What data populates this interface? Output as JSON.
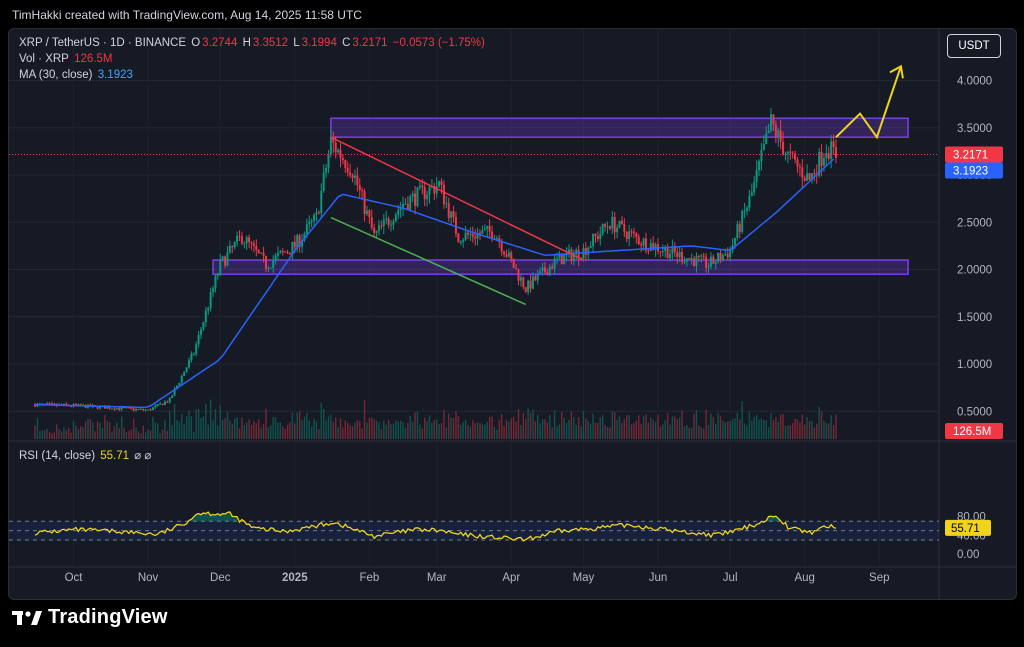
{
  "credit": "TimHakki created with TradingView.com, Aug 14, 2025 11:58 UTC",
  "header": {
    "symbol": "XRP / TetherUS · 1D · BINANCE",
    "o_label": "O",
    "o_value": "3.2744",
    "h_label": "H",
    "h_value": "3.3512",
    "l_label": "L",
    "l_value": "3.1994",
    "c_label": "C",
    "c_value": "3.2171",
    "change": "−0.0573 (−1.75%)",
    "vol_label": "Vol · XRP",
    "vol_value": "126.5M",
    "ma_label": "MA (30, close)",
    "ma_value": "3.1923",
    "rsi_label": "RSI (14, close)",
    "rsi_value": "55.71",
    "rsi_icons": "⌀ ⌀"
  },
  "currency_button": "USDT",
  "brand": "TradingView",
  "colors": {
    "up": "#089981",
    "down": "#f23645",
    "ma": "#2962ff",
    "rsi": "#f0d31b",
    "zone": "#7b3fe4",
    "resistance_line": "#f23645",
    "support_line": "#4caf50",
    "arrow": "#f0d31b"
  },
  "chart_data": [
    {
      "type": "candlestick",
      "title": "XRP / TetherUS · 1D · BINANCE",
      "y_axis": {
        "ticks": [
          "4.0000",
          "3.5000",
          "3.0000",
          "2.5000",
          "2.0000",
          "1.5000",
          "1.0000",
          "0.5000"
        ],
        "ylim": [
          0,
          4.5
        ]
      },
      "x_axis": {
        "ticks": [
          "Oct",
          "Nov",
          "Dec",
          "2025",
          "Feb",
          "Mar",
          "Apr",
          "May",
          "Jun",
          "Jul",
          "Aug",
          "Sep"
        ]
      },
      "price_labels": [
        {
          "text": "3.2171",
          "value": 3.2171,
          "color": "#f23645"
        },
        {
          "text": "3.1923",
          "value": 3.1923,
          "color": "#2962ff"
        },
        {
          "text": "126.5M",
          "color": "#f23645"
        }
      ],
      "approx_close": {
        "dates": [
          "2024-09-15",
          "2024-10-01",
          "2024-10-15",
          "2024-11-01",
          "2024-11-10",
          "2024-11-20",
          "2024-12-01",
          "2024-12-10",
          "2024-12-20",
          "2025-01-01",
          "2025-01-10",
          "2025-01-16",
          "2025-01-25",
          "2025-02-03",
          "2025-02-15",
          "2025-03-02",
          "2025-03-10",
          "2025-03-25",
          "2025-04-07",
          "2025-04-20",
          "2025-05-01",
          "2025-05-12",
          "2025-05-25",
          "2025-06-10",
          "2025-06-22",
          "2025-07-01",
          "2025-07-10",
          "2025-07-18",
          "2025-07-25",
          "2025-08-03",
          "2025-08-10",
          "2025-08-14"
        ],
        "values": [
          0.57,
          0.56,
          0.54,
          0.51,
          0.62,
          1.12,
          2.05,
          2.35,
          2.05,
          2.25,
          2.55,
          3.35,
          3.05,
          2.35,
          2.7,
          2.9,
          2.35,
          2.4,
          1.8,
          2.1,
          2.2,
          2.5,
          2.3,
          2.15,
          2.05,
          2.2,
          2.8,
          3.55,
          3.2,
          2.95,
          3.3,
          3.2171
        ]
      },
      "ma_30": {
        "dates": [
          "2024-09-15",
          "2024-11-01",
          "2024-12-01",
          "2025-01-01",
          "2025-01-20",
          "2025-02-15",
          "2025-03-15",
          "2025-04-15",
          "2025-05-15",
          "2025-06-15",
          "2025-07-01",
          "2025-07-20",
          "2025-08-14"
        ],
        "values": [
          0.57,
          0.54,
          1.05,
          2.2,
          2.8,
          2.65,
          2.4,
          2.15,
          2.2,
          2.25,
          2.2,
          2.6,
          3.1923
        ]
      },
      "zones": [
        {
          "name": "resistance_zone",
          "from": 3.4,
          "to": 3.6
        },
        {
          "name": "support_zone",
          "from": 1.95,
          "to": 2.1
        }
      ],
      "trendlines": [
        {
          "name": "descending_resistance",
          "from": [
            "2025-01-16",
            3.4
          ],
          "to": [
            "2025-05-01",
            2.1
          ]
        },
        {
          "name": "descending_support",
          "from": [
            "2025-01-16",
            2.55
          ],
          "to": [
            "2025-04-07",
            1.63
          ]
        }
      ],
      "projection": {
        "path_dates": [
          "2025-08-14",
          "2025-08-24",
          "2025-08-31",
          "2025-09-10"
        ],
        "path_values": [
          3.4,
          3.65,
          3.4,
          4.15
        ]
      }
    },
    {
      "type": "line",
      "title": "RSI (14, close)",
      "current": 55.71,
      "y_axis": {
        "ticks": [
          "80.00",
          "40.00",
          "0.00"
        ]
      },
      "bands": {
        "upper": 70,
        "middle": 50,
        "lower": 30
      },
      "dates": [
        "2024-09-15",
        "2024-10-01",
        "2024-10-20",
        "2024-11-05",
        "2024-11-15",
        "2024-11-22",
        "2024-12-05",
        "2024-12-15",
        "2024-12-28",
        "2025-01-10",
        "2025-01-17",
        "2025-02-03",
        "2025-02-20",
        "2025-03-02",
        "2025-03-10",
        "2025-04-07",
        "2025-04-20",
        "2025-05-05",
        "2025-05-20",
        "2025-06-10",
        "2025-06-25",
        "2025-07-05",
        "2025-07-14",
        "2025-07-20",
        "2025-07-25",
        "2025-08-03",
        "2025-08-10",
        "2025-08-14"
      ],
      "values": [
        45,
        52,
        48,
        42,
        62,
        88,
        85,
        55,
        48,
        60,
        68,
        38,
        52,
        50,
        42,
        30,
        48,
        55,
        62,
        48,
        40,
        52,
        68,
        85,
        58,
        45,
        60,
        55.71
      ],
      "overbought_fill": "#089981"
    }
  ]
}
